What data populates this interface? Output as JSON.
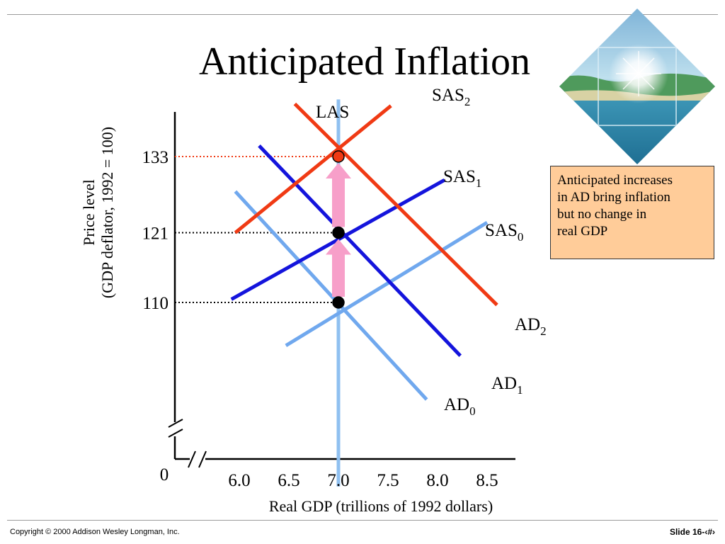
{
  "slide": {
    "title": "Anticipated Inflation",
    "copyright": "Copyright © 2000 Addison Wesley Longman, Inc.",
    "slide_number": "Slide 16-‹#›",
    "note": "Anticipated increases\nin AD bring inflation\nbut no change in\nreal GDP",
    "picture_icon": "tropical-island-sunburst-image"
  },
  "colors": {
    "las": "#8fc0f0",
    "sas2": "#f03a14",
    "sas1": "#1414dc",
    "sas0": "#70a8ee",
    "ad2": "#f03a14",
    "ad1": "#1414dc",
    "ad0": "#70a8ee",
    "arrow": "#f79fc9",
    "highlight": "#f03a14",
    "note_bg": "#ffcc99"
  },
  "chart_data": {
    "type": "line",
    "ylabel_lines": [
      "Price level",
      "(GDP deflator, 1992 = 100)"
    ],
    "xlabel": "Real GDP (trillions of 1992 dollars)",
    "origin_label": "0",
    "x_ticks": [
      {
        "label": "6.0",
        "value": 6.0,
        "highlight": false
      },
      {
        "label": "6.5",
        "value": 6.5,
        "highlight": false
      },
      {
        "label": "7.0",
        "value": 7.0,
        "highlight": true
      },
      {
        "label": "7.5",
        "value": 7.5,
        "highlight": false
      },
      {
        "label": "8.0",
        "value": 8.0,
        "highlight": false
      },
      {
        "label": "8.5",
        "value": 8.5,
        "highlight": false
      }
    ],
    "y_ticks": [
      {
        "label": "110",
        "value": 110,
        "highlight": false
      },
      {
        "label": "121",
        "value": 121,
        "highlight": false
      },
      {
        "label": "133",
        "value": 133,
        "highlight": true
      }
    ],
    "series": [
      {
        "name": "LAS",
        "sub": "",
        "color_key": "las",
        "points": [
          [
            7.0,
            142
          ],
          [
            7.0,
            81
          ]
        ]
      },
      {
        "name": "SAS",
        "sub": "2",
        "color_key": "sas2",
        "points": [
          [
            5.96,
            121
          ],
          [
            7.53,
            141
          ]
        ]
      },
      {
        "name": "SAS",
        "sub": "1",
        "color_key": "sas1",
        "points": [
          [
            5.92,
            110.5
          ],
          [
            8.07,
            129.3
          ]
        ]
      },
      {
        "name": "SAS",
        "sub": "0",
        "color_key": "sas0",
        "points": [
          [
            6.47,
            103.2
          ],
          [
            8.5,
            122.6
          ]
        ]
      },
      {
        "name": "AD",
        "sub": "2",
        "color_key": "ad2",
        "points": [
          [
            6.56,
            141.3
          ],
          [
            8.6,
            109.6
          ]
        ]
      },
      {
        "name": "AD",
        "sub": "1",
        "color_key": "ad1",
        "points": [
          [
            6.2,
            134.7
          ],
          [
            8.23,
            101.6
          ]
        ]
      },
      {
        "name": "AD",
        "sub": "0",
        "color_key": "ad0",
        "points": [
          [
            5.96,
            127.5
          ],
          [
            7.89,
            94.7
          ]
        ]
      }
    ],
    "equilibria": [
      {
        "x": 7.0,
        "y": 110,
        "fill": "#000000"
      },
      {
        "x": 7.0,
        "y": 121,
        "fill": "#000000"
      },
      {
        "x": 7.0,
        "y": 133,
        "fill": "#f03a14"
      }
    ],
    "shift_arrows": [
      {
        "x": 7.0,
        "from": 110,
        "to": 121
      },
      {
        "x": 7.0,
        "from": 121,
        "to": 133
      }
    ]
  }
}
